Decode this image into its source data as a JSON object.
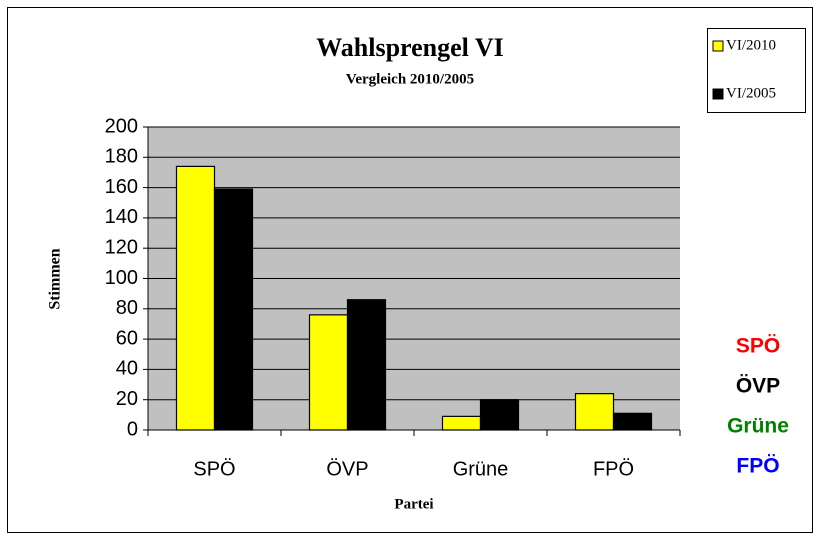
{
  "chart_data": {
    "type": "bar",
    "title": "Wahlsprengel VI",
    "subtitle": "Vergleich 2010/2005",
    "x_label": "Partei",
    "y_label": "Stimmen",
    "categories": [
      "SPÖ",
      "ÖVP",
      "Grüne",
      "FPÖ"
    ],
    "series": [
      {
        "name": "VI/2010",
        "color": "#ffff00",
        "values": [
          174,
          76,
          9,
          24
        ]
      },
      {
        "name": "VI/2005",
        "color": "#000000",
        "values": [
          159,
          86,
          20,
          11
        ]
      }
    ],
    "ylim": [
      0,
      200
    ],
    "yticks": [
      0,
      20,
      40,
      60,
      80,
      100,
      120,
      140,
      160,
      180,
      200
    ],
    "grid": true,
    "legend": "top-right",
    "annotations": [
      {
        "text": "SPÖ",
        "color": "#ff0000"
      },
      {
        "text": "ÖVP",
        "color": "#000000"
      },
      {
        "text": "Grüne",
        "color": "#008000"
      },
      {
        "text": "FPÖ",
        "color": "#0000ff"
      }
    ]
  }
}
